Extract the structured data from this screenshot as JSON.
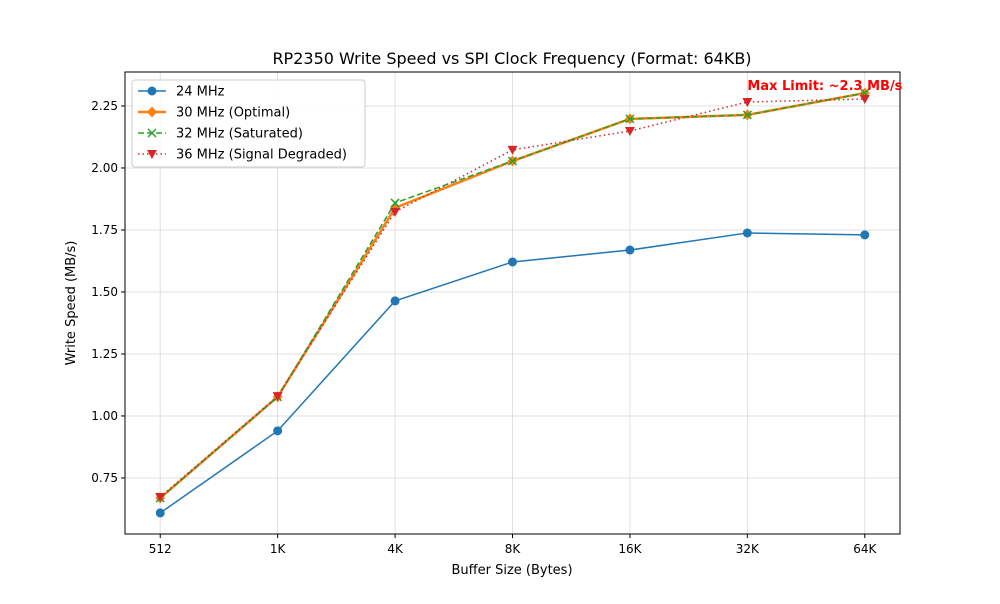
{
  "chart_data": {
    "type": "line",
    "title": "RP2350 Write Speed vs SPI Clock Frequency (Format: 64KB)",
    "xlabel": "Buffer Size (Bytes)",
    "ylabel": "Write Speed (MB/s)",
    "categories": [
      "512",
      "1K",
      "4K",
      "8K",
      "16K",
      "32K",
      "64K"
    ],
    "ylim": [
      0.524,
      2.387
    ],
    "yticks": [
      "0.75",
      "1.00",
      "1.25",
      "1.50",
      "1.75",
      "2.00",
      "2.25"
    ],
    "grid": true,
    "legend_placement": "upper-left",
    "series": [
      {
        "name": "24 MHz",
        "color": "#1f77b4",
        "style": "solid",
        "marker": "circle",
        "values": [
          0.609,
          0.94,
          1.464,
          1.621,
          1.669,
          1.738,
          1.73
        ]
      },
      {
        "name": "30 MHz (Optimal)",
        "color": "#ff7f0e",
        "style": "solid-thick",
        "marker": "diamond",
        "values": [
          0.669,
          1.077,
          1.839,
          2.028,
          2.198,
          2.214,
          2.302
        ]
      },
      {
        "name": "32 MHz (Saturated)",
        "color": "#2ca02c",
        "style": "dashed",
        "marker": "x",
        "values": [
          0.669,
          1.077,
          1.859,
          2.028,
          2.198,
          2.214,
          2.302
        ]
      },
      {
        "name": "36 MHz (Signal Degraded)",
        "color": "#d62728",
        "style": "dotted",
        "marker": "triangle-down",
        "values": [
          0.673,
          1.08,
          1.823,
          2.073,
          2.149,
          2.266,
          2.278
        ]
      }
    ],
    "annotation": {
      "text": "Max Limit: ~2.3 MB/s",
      "color": "#ff0000",
      "x": "32K",
      "y": 2.33
    }
  }
}
